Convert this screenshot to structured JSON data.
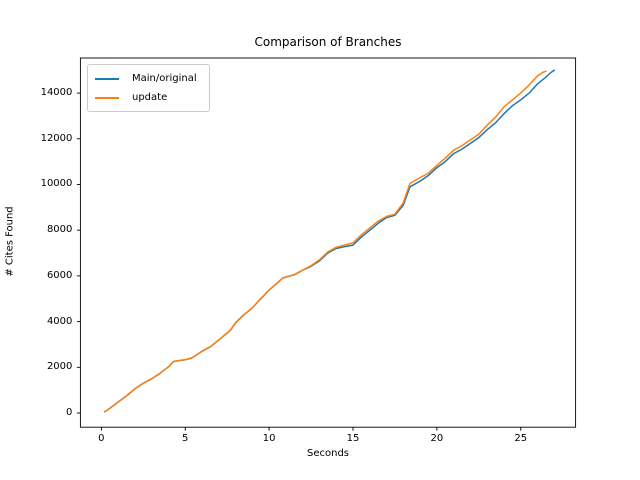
{
  "figure": {
    "title": "Comparison of Branches",
    "xlabel": "Seconds",
    "ylabel": "# Cites Found",
    "background_color": "#ffffff",
    "axes_edge_color": "#000000"
  },
  "legend": {
    "entries": [
      {
        "label": "Main/original",
        "color": "#1f77b4"
      },
      {
        "label": "update",
        "color": "#ff7f0e"
      }
    ]
  },
  "chart_data": {
    "type": "line",
    "title": "Comparison of Branches",
    "xlabel": "Seconds",
    "ylabel": "# Cites Found",
    "xlim": [
      -1.25,
      28.27
    ],
    "ylim": [
      -621,
      15553
    ],
    "xticks": [
      0,
      5,
      10,
      15,
      20,
      25
    ],
    "yticks": [
      0,
      2000,
      4000,
      6000,
      8000,
      10000,
      12000,
      14000
    ],
    "grid": false,
    "legend_position": "upper-left",
    "series": [
      {
        "name": "Main/original",
        "color": "#1f77b4",
        "x": [
          0.2,
          0.5,
          1,
          1.5,
          2,
          2.5,
          3,
          3.5,
          4,
          4.3,
          4.5,
          5,
          5.3,
          5.5,
          6,
          6.5,
          7,
          7.5,
          7.7,
          8,
          8.5,
          9,
          9.5,
          10,
          10.5,
          10.8,
          11,
          11.5,
          12,
          12.5,
          13,
          13.5,
          14,
          14.5,
          15,
          15.5,
          16,
          16.5,
          17,
          17.5,
          18,
          18.4,
          19,
          19.5,
          20,
          20.5,
          21,
          21.5,
          22,
          22.5,
          23,
          23.5,
          24,
          24.5,
          25,
          25.5,
          26,
          26.5,
          26.8,
          27
        ],
        "y": [
          50,
          200,
          480,
          750,
          1060,
          1300,
          1500,
          1740,
          2020,
          2250,
          2280,
          2330,
          2390,
          2450,
          2700,
          2900,
          3200,
          3500,
          3630,
          3950,
          4300,
          4600,
          5000,
          5380,
          5700,
          5900,
          5950,
          6050,
          6250,
          6420,
          6650,
          7000,
          7200,
          7280,
          7350,
          7700,
          8000,
          8300,
          8550,
          8650,
          9100,
          9900,
          10150,
          10400,
          10740,
          11000,
          11350,
          11550,
          11800,
          12050,
          12400,
          12700,
          13100,
          13450,
          13700,
          14000,
          14400,
          14700,
          14900,
          15000
        ]
      },
      {
        "name": "update",
        "color": "#ff7f0e",
        "x": [
          0.2,
          0.5,
          1,
          1.5,
          2,
          2.5,
          3,
          3.5,
          4,
          4.3,
          4.5,
          5,
          5.3,
          5.5,
          6,
          6.5,
          7,
          7.5,
          7.7,
          8,
          8.5,
          9,
          9.5,
          10,
          10.5,
          10.8,
          11,
          11.5,
          12,
          12.5,
          13,
          13.5,
          14,
          14.5,
          15,
          15.5,
          16,
          16.5,
          17,
          17.5,
          18,
          18.4,
          19,
          19.5,
          20,
          20.5,
          21,
          21.5,
          22,
          22.5,
          23,
          23.5,
          24,
          24.5,
          25,
          25.5,
          26,
          26.3,
          26.5
        ],
        "y": [
          50,
          200,
          480,
          750,
          1060,
          1300,
          1500,
          1740,
          2020,
          2250,
          2280,
          2330,
          2390,
          2450,
          2700,
          2900,
          3200,
          3500,
          3630,
          3950,
          4300,
          4600,
          5000,
          5380,
          5700,
          5900,
          5950,
          6050,
          6250,
          6450,
          6700,
          7050,
          7250,
          7350,
          7450,
          7800,
          8100,
          8400,
          8600,
          8700,
          9200,
          10050,
          10300,
          10500,
          10840,
          11150,
          11500,
          11700,
          11950,
          12200,
          12600,
          12950,
          13400,
          13700,
          14000,
          14350,
          14750,
          14900,
          14960
        ]
      }
    ]
  }
}
